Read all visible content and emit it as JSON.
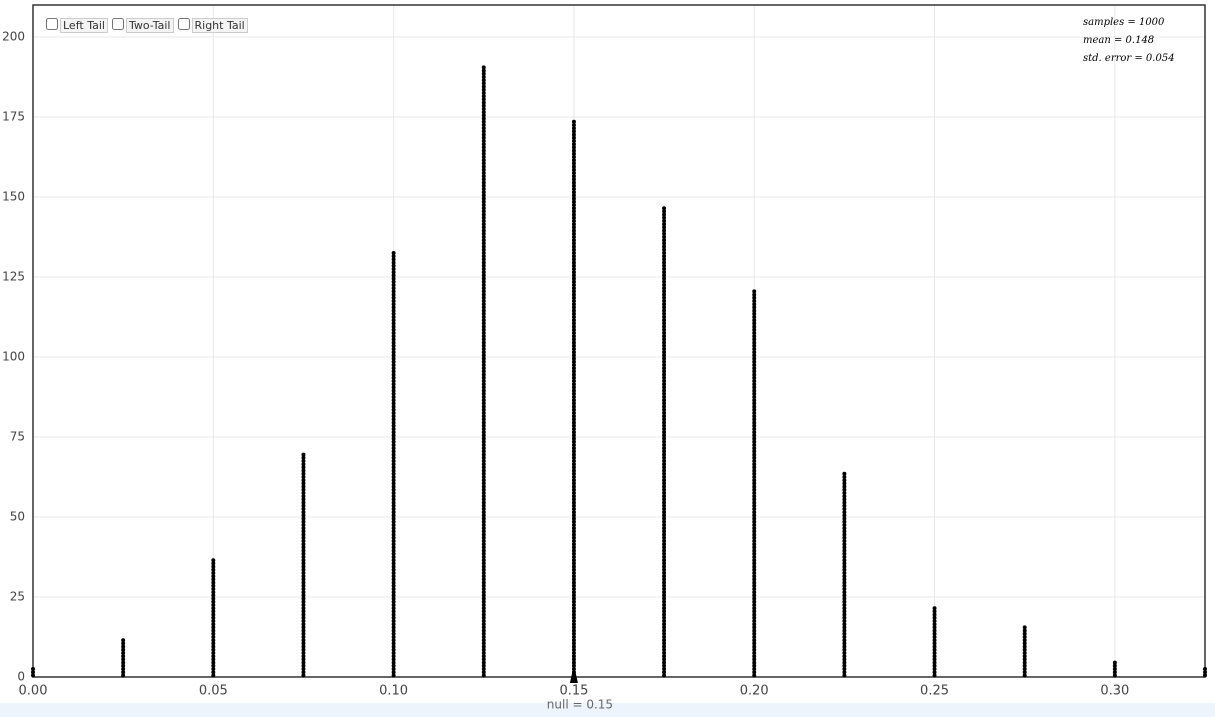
{
  "chart_data": {
    "type": "dotplot",
    "controls": [
      "Left Tail",
      "Two-Tail",
      "Right Tail"
    ],
    "annotations": [
      "samples = 1000",
      "mean = 0.148",
      "std. error = 0.054"
    ],
    "null_label": "null = 0.15",
    "null_value": 0.15,
    "x": [
      0,
      0.025,
      0.05,
      0.075,
      0.1,
      0.125,
      0.15,
      0.175,
      0.2,
      0.225,
      0.25,
      0.275,
      0.3,
      0.325
    ],
    "values": [
      3,
      12,
      37,
      70,
      133,
      191,
      174,
      147,
      122,
      64,
      22,
      16,
      6,
      3
    ],
    "color": "#000000",
    "xlim": [
      0,
      0.325
    ],
    "ylim": [
      0,
      210
    ],
    "xticks": [
      {
        "value": 0,
        "label": "0.00"
      },
      {
        "value": 0.05,
        "label": "0.05"
      },
      {
        "value": 0.1,
        "label": "0.10"
      },
      {
        "value": 0.15,
        "label": "0.15"
      },
      {
        "value": 0.2,
        "label": "0.20"
      },
      {
        "value": 0.25,
        "label": "0.25"
      },
      {
        "value": 0.3,
        "label": "0.30"
      }
    ],
    "yticks": [
      0,
      25,
      50,
      75,
      100,
      125,
      150,
      175,
      200
    ],
    "grid": true
  }
}
